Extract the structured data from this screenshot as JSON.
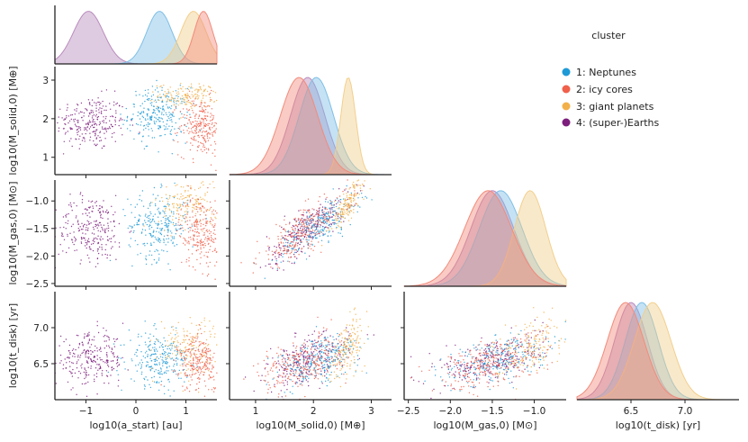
{
  "chart_data": {
    "type": "scatter",
    "subtype": "corner-pairplot-with-kde",
    "variables": [
      {
        "key": "a",
        "label": "log10(a_start) [au]",
        "ticks": [
          -1,
          0,
          1
        ],
        "tick_labels": [
          "−1",
          "0",
          "1"
        ],
        "range": [
          -1.62,
          1.62
        ]
      },
      {
        "key": "ms",
        "label": "log10(M_solid,0) [M⊕]",
        "ticks": [
          1,
          2,
          3
        ],
        "tick_labels": [
          "1",
          "2",
          "3"
        ],
        "range": [
          0.55,
          3.35
        ]
      },
      {
        "key": "mg",
        "label": "log10(M_gas,0) [M⊙]",
        "ticks": [
          -2.5,
          -2.0,
          -1.5,
          -1.0
        ],
        "tick_labels": [
          "−2.5",
          "−2.0",
          "−1.5",
          "−1.0"
        ],
        "range": [
          -2.55,
          -0.62
        ]
      },
      {
        "key": "t",
        "label": "log10(t_disk) [yr]",
        "ticks": [
          6.5,
          7.0
        ],
        "tick_labels": [
          "6.5",
          "7.0"
        ],
        "range": [
          6.0,
          7.5
        ]
      }
    ],
    "legend": {
      "title": "cluster",
      "position": "top-right",
      "entries": [
        {
          "label": "1: Neptunes",
          "color": "#1f9ad6"
        },
        {
          "label": "2: icy cores",
          "color": "#f0604b"
        },
        {
          "label": "3: giant planets",
          "color": "#f2b04a"
        },
        {
          "label": "4: (super-)Earths",
          "color": "#7d1e7c"
        }
      ]
    },
    "clusters": [
      {
        "name": "1: Neptunes",
        "color": "#1f9ad6",
        "kde_color": "#7fbfe6",
        "mean": {
          "a": 0.45,
          "ms": 2.1,
          "mg": -1.45,
          "t": 6.55
        },
        "sd": {
          "a": 0.3,
          "ms": 0.35,
          "mg": 0.3,
          "t": 0.18
        },
        "peaks": {
          "a": 0.47,
          "ms": 2.05,
          "mg": -1.4,
          "t": 6.6
        }
      },
      {
        "name": "2: icy cores",
        "color": "#f0604b",
        "kde_color": "#f28b7c",
        "mean": {
          "a": 1.3,
          "ms": 1.8,
          "mg": -1.55,
          "t": 6.5
        },
        "sd": {
          "a": 0.22,
          "ms": 0.38,
          "mg": 0.33,
          "t": 0.2
        },
        "peaks": {
          "a": 1.35,
          "ms": 1.75,
          "mg": -1.55,
          "t": 6.45
        }
      },
      {
        "name": "3: giant planets",
        "color": "#f2b04a",
        "kde_color": "#f2cf8c",
        "mean": {
          "a": 1.05,
          "ms": 2.6,
          "mg": -1.05,
          "t": 6.75
        },
        "sd": {
          "a": 0.3,
          "ms": 0.15,
          "mg": 0.22,
          "t": 0.2
        },
        "peaks": {
          "a": 1.15,
          "ms": 2.6,
          "mg": -1.05,
          "t": 6.7
        }
      },
      {
        "name": "4: (super-)Earths",
        "color": "#7d1e7c",
        "kde_color": "#b98bbd",
        "mean": {
          "a": -0.9,
          "ms": 1.9,
          "mg": -1.5,
          "t": 6.55
        },
        "sd": {
          "a": 0.35,
          "ms": 0.35,
          "mg": 0.3,
          "t": 0.18
        },
        "peaks": {
          "a": -0.95,
          "ms": 1.9,
          "mg": -1.5,
          "t": 6.5
        }
      }
    ],
    "grid": false
  }
}
